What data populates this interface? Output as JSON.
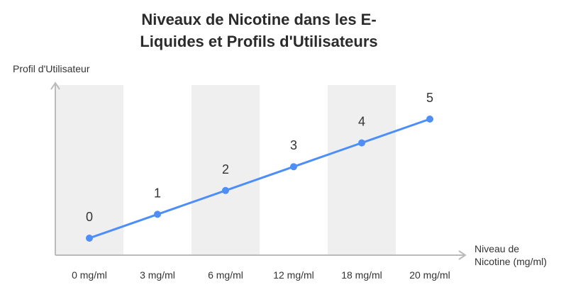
{
  "chart_data": {
    "type": "line",
    "title": "Niveaux de Nicotine dans les E-Liquides et Profils d'Utilisateurs",
    "title_lines": [
      "Niveaux de Nicotine dans les E-",
      "Liquides et Profils d'Utilisateurs"
    ],
    "ylabel": "Profil d'Utilisateur",
    "xlabel_lines": [
      "Niveau de",
      "Nicotine (mg/ml)"
    ],
    "categories": [
      "0 mg/ml",
      "3 mg/ml",
      "6 mg/ml",
      "12 mg/ml",
      "18 mg/ml",
      "20 mg/ml"
    ],
    "series": [
      {
        "values": [
          0,
          1,
          2,
          3,
          4,
          5
        ]
      }
    ],
    "data_labels": [
      "0",
      "1",
      "2",
      "3",
      "4",
      "5"
    ],
    "shaded_bands": [
      0,
      2,
      4
    ],
    "colors": {
      "line": "#4d8ef7",
      "band": "#efefef",
      "axis": "#bbbbbb"
    },
    "grid": false,
    "legend": "none"
  }
}
